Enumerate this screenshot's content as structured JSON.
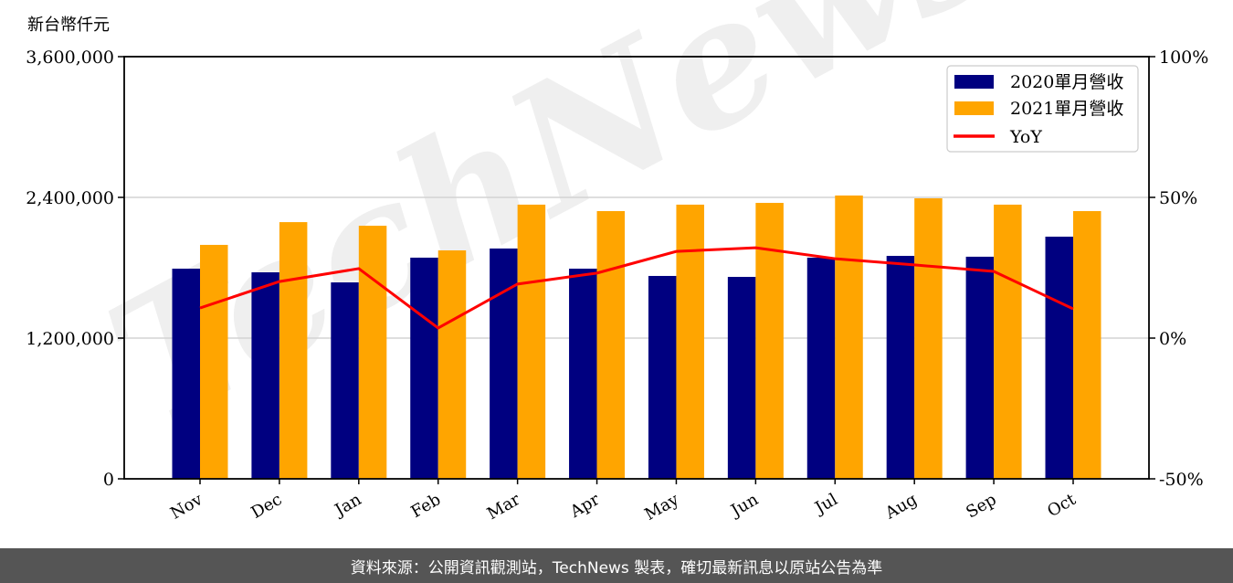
{
  "chart_data": {
    "type": "bar",
    "title": "",
    "ylabel": "新台幣仟元",
    "y2label": "",
    "xlabel": "",
    "categories": [
      "Nov",
      "Dec",
      "Jan",
      "Feb",
      "Mar",
      "Apr",
      "May",
      "Jun",
      "Jul",
      "Aug",
      "Sep",
      "Oct"
    ],
    "series": [
      {
        "name": "2020單月營收",
        "type": "bar",
        "axis": "left",
        "color": "#000080",
        "values": [
          1792000,
          1761000,
          1675000,
          1886000,
          1964000,
          1792000,
          1730000,
          1722000,
          1886000,
          1901000,
          1894000,
          2065000
        ]
      },
      {
        "name": "2021單月營收",
        "type": "bar",
        "axis": "left",
        "color": "#FFA500",
        "values": [
          1995000,
          2189000,
          2158000,
          1948000,
          2338000,
          2283000,
          2338000,
          2353000,
          2416000,
          2392000,
          2338000,
          2283000
        ]
      },
      {
        "name": "YoY",
        "type": "line",
        "axis": "right",
        "color": "#FF0000",
        "unit": "%",
        "values": [
          10.7,
          20.1,
          24.7,
          3.6,
          19.2,
          23.1,
          30.8,
          32.1,
          28.2,
          26.0,
          23.7,
          10.4
        ]
      }
    ],
    "ylim": [
      0,
      3600000
    ],
    "y_ticks": [
      "0",
      "1,200,000",
      "2,400,000",
      "3,600,000"
    ],
    "y2lim": [
      -50,
      100
    ],
    "y2_ticks": [
      "-50%",
      "0%",
      "50%",
      "100%"
    ],
    "grid": "horizontal",
    "legend_position": "upper right",
    "watermark": "TechNews"
  },
  "footer": {
    "source_text": "資料來源：公開資訊觀測站，TechNews 製表，確切最新訊息以原站公告為準"
  }
}
